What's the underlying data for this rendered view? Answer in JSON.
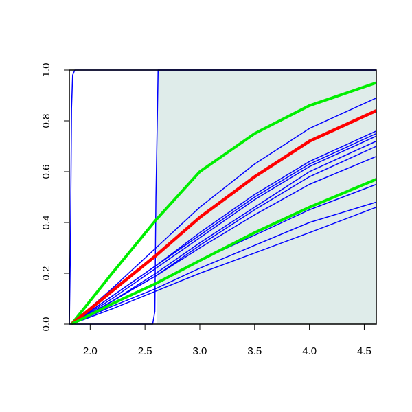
{
  "chart_data": {
    "type": "line",
    "xlim": [
      1.81,
      4.61
    ],
    "ylim": [
      0,
      1
    ],
    "xticks": [
      {
        "value": 2,
        "label": "2.0"
      },
      {
        "value": 2.5,
        "label": "2.5"
      },
      {
        "value": 3,
        "label": "3.0"
      },
      {
        "value": 3.5,
        "label": "3.5"
      },
      {
        "value": 4,
        "label": "4.0"
      },
      {
        "value": 4.5,
        "label": "4.5"
      }
    ],
    "yticks": [
      {
        "value": 0,
        "label": "0.0"
      },
      {
        "value": 0.2,
        "label": "0.2"
      },
      {
        "value": 0.4,
        "label": "0.4"
      },
      {
        "value": 0.6,
        "label": "0.6"
      },
      {
        "value": 0.8,
        "label": "0.8"
      },
      {
        "value": 1,
        "label": "1.0"
      }
    ],
    "highlight": {
      "x": [
        2.61,
        4.61
      ],
      "color": "#dfecea"
    },
    "series": [
      {
        "color": "#0000ff",
        "width": 1.5,
        "x": [
          1.81,
          1.82,
          1.83,
          1.84,
          1.86,
          4.61
        ],
        "values": [
          0,
          0.3,
          0.85,
          0.98,
          1,
          1
        ]
      },
      {
        "color": "#0000ff",
        "width": 1.5,
        "x": [
          1.81,
          2.57,
          2.59,
          2.6,
          2.62,
          4.61
        ],
        "values": [
          0,
          0,
          0.05,
          0.5,
          1,
          1
        ]
      },
      {
        "color": "#0000ff",
        "width": 1.5,
        "x": [
          1.83,
          2.2,
          2.6,
          3.0,
          3.5,
          4.0,
          4.61
        ],
        "values": [
          0,
          0.14,
          0.3,
          0.46,
          0.63,
          0.77,
          0.89
        ]
      },
      {
        "color": "#0000ff",
        "width": 1.5,
        "x": [
          1.83,
          2.2,
          2.6,
          3.0,
          3.5,
          4.0,
          4.61
        ],
        "values": [
          0,
          0.11,
          0.23,
          0.36,
          0.51,
          0.64,
          0.76
        ]
      },
      {
        "color": "#0000ff",
        "width": 1.5,
        "x": [
          1.83,
          2.2,
          2.6,
          3.0,
          3.5,
          4.0,
          4.61
        ],
        "values": [
          0,
          0.11,
          0.23,
          0.35,
          0.5,
          0.63,
          0.75
        ]
      },
      {
        "color": "#0000ff",
        "width": 1.5,
        "x": [
          1.83,
          2.2,
          2.6,
          3.0,
          3.5,
          4.0,
          4.61
        ],
        "values": [
          0,
          0.1,
          0.22,
          0.34,
          0.49,
          0.62,
          0.74
        ]
      },
      {
        "color": "#0000ff",
        "width": 1.5,
        "x": [
          1.83,
          2.2,
          2.6,
          3.0,
          3.5,
          4.0,
          4.61
        ],
        "values": [
          0,
          0.09,
          0.2,
          0.32,
          0.46,
          0.6,
          0.72
        ]
      },
      {
        "color": "#0000ff",
        "width": 1.5,
        "x": [
          1.83,
          2.2,
          2.6,
          3.0,
          3.5,
          4.0,
          4.61
        ],
        "values": [
          0,
          0.09,
          0.19,
          0.31,
          0.45,
          0.58,
          0.7
        ]
      },
      {
        "color": "#0000ff",
        "width": 1.5,
        "x": [
          1.83,
          2.2,
          2.6,
          3.0,
          3.5,
          4.0,
          4.61
        ],
        "values": [
          0,
          0.09,
          0.19,
          0.3,
          0.43,
          0.55,
          0.66
        ]
      },
      {
        "color": "#0000ff",
        "width": 1.5,
        "x": [
          1.83,
          2.2,
          2.6,
          3.0,
          3.5,
          4.0,
          4.61
        ],
        "values": [
          0,
          0.08,
          0.16,
          0.25,
          0.35,
          0.45,
          0.55
        ]
      },
      {
        "color": "#0000ff",
        "width": 1.5,
        "x": [
          1.83,
          2.2,
          2.6,
          3.0,
          3.5,
          4.0,
          4.61
        ],
        "values": [
          0,
          0.07,
          0.14,
          0.22,
          0.31,
          0.4,
          0.48
        ]
      },
      {
        "color": "#0000ff",
        "width": 1.5,
        "x": [
          1.83,
          2.2,
          2.6,
          3.0,
          3.5,
          4.0,
          4.61
        ],
        "values": [
          0,
          0.06,
          0.13,
          0.2,
          0.28,
          0.36,
          0.46
        ]
      },
      {
        "color": "#00ee00",
        "width": 4,
        "x": [
          1.83,
          2.2,
          2.6,
          3.0,
          3.5,
          4.0,
          4.61
        ],
        "values": [
          0,
          0.2,
          0.41,
          0.6,
          0.75,
          0.86,
          0.95
        ]
      },
      {
        "color": "#ff0000",
        "width": 4.5,
        "x": [
          1.83,
          2.2,
          2.6,
          3.0,
          3.5,
          4.0,
          4.61
        ],
        "values": [
          0,
          0.13,
          0.27,
          0.42,
          0.58,
          0.72,
          0.84
        ]
      },
      {
        "color": "#00ee00",
        "width": 4,
        "x": [
          1.83,
          2.2,
          2.6,
          3.0,
          3.5,
          4.0,
          4.61
        ],
        "values": [
          0,
          0.08,
          0.16,
          0.25,
          0.36,
          0.46,
          0.57
        ]
      }
    ]
  }
}
